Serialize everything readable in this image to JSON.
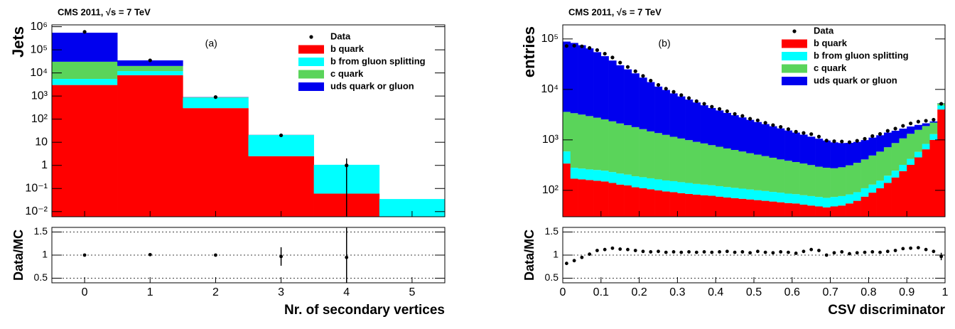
{
  "chart_data": [
    {
      "type": "stacked_histogram",
      "title": "CMS 2011, √s = 7 TeV",
      "annotation": "(a)",
      "y_label": "Jets",
      "log_y": true,
      "bins": [
        -0.5,
        0.5,
        1.5,
        2.5,
        3.5,
        4.5,
        5.5
      ],
      "xlim": [
        -0.5,
        5.5
      ],
      "ylim": [
        0.006,
        1200000
      ],
      "yticks": [
        {
          "value": 0.01,
          "label": "10⁻²"
        },
        {
          "value": 0.1,
          "label": "10⁻¹"
        },
        1,
        10,
        {
          "value": 100,
          "label": "10²"
        },
        {
          "value": 1000,
          "label": "10³"
        },
        {
          "value": 10000,
          "label": "10⁴"
        },
        {
          "value": 100000,
          "label": "10⁵"
        },
        {
          "value": 1000000,
          "label": "10⁶"
        }
      ],
      "legend": "top-right",
      "data": {
        "name": "Data",
        "values": [
          600000,
          35000,
          900,
          20,
          1,
          null
        ],
        "errors": [
          null,
          null,
          null,
          null,
          1,
          null
        ]
      },
      "series": [
        {
          "name": "b quark",
          "color": "#ff0000",
          "values": [
            3000,
            8000,
            300,
            2.5,
            0.06,
            0
          ]
        },
        {
          "name": "b from gluon splitting",
          "color": "#00ffff",
          "values": [
            2500,
            4000,
            550,
            18,
            1.0,
            0.035
          ]
        },
        {
          "name": "c quark",
          "color": "#5ad45a",
          "values": [
            25000,
            8000,
            30,
            0.3,
            0,
            0
          ]
        },
        {
          "name": "uds quark or gluon",
          "color": "#0000ee",
          "values": [
            520000,
            15000,
            20,
            0.2,
            0,
            0
          ]
        }
      ]
    },
    {
      "type": "ratio",
      "y_label": "Data/MC",
      "x_label": "Nr. of secondary vertices",
      "x": [
        0,
        1,
        2,
        3,
        4
      ],
      "values": [
        1.0,
        1.01,
        1.0,
        0.97,
        0.95
      ],
      "errors": [
        0.01,
        0.01,
        0.02,
        0.2,
        1.0
      ],
      "xlim": [
        -0.5,
        5.5
      ],
      "xticks": [
        0,
        1,
        2,
        3,
        4,
        5
      ],
      "ylim": [
        0.4,
        1.6
      ],
      "yticks": [
        0.5,
        1,
        1.5
      ],
      "grid": true
    },
    {
      "type": "stacked_histogram",
      "title": "CMS 2011, √s = 7 TeV",
      "annotation": "(b)",
      "y_label": "entries",
      "log_y": true,
      "bins": [
        0,
        0.02,
        0.04,
        0.06,
        0.08,
        0.1,
        0.12,
        0.14,
        0.16,
        0.18,
        0.2,
        0.22,
        0.24,
        0.26,
        0.28,
        0.3,
        0.32,
        0.34,
        0.36,
        0.38,
        0.4,
        0.42,
        0.44,
        0.46,
        0.48,
        0.5,
        0.52,
        0.54,
        0.56,
        0.58,
        0.6,
        0.62,
        0.64,
        0.66,
        0.68,
        0.7,
        0.72,
        0.74,
        0.76,
        0.78,
        0.8,
        0.82,
        0.84,
        0.86,
        0.88,
        0.9,
        0.92,
        0.94,
        0.96,
        0.98,
        1.0
      ],
      "xlim": [
        0,
        1
      ],
      "ylim": [
        30,
        190000
      ],
      "yticks": [
        {
          "value": 100,
          "label": "10²"
        },
        {
          "value": 1000,
          "label": "10³"
        },
        {
          "value": 10000,
          "label": "10⁴"
        },
        {
          "value": 100000,
          "label": "10⁵"
        }
      ],
      "legend": "top-right",
      "data": {
        "name": "Data",
        "values": [
          72600,
          73400,
          71400,
          66300,
          60200,
          51000,
          42900,
          34000,
          27900,
          22900,
          18500,
          14950,
          12270,
          10340,
          8940,
          7700,
          6730,
          5840,
          5190,
          4540,
          4100,
          3700,
          3270,
          2980,
          2620,
          2440,
          2180,
          1960,
          1810,
          1630,
          1450,
          1370,
          1300,
          1160,
          970,
          940,
          930,
          900,
          960,
          1050,
          1190,
          1310,
          1510,
          1670,
          1900,
          2120,
          2300,
          2390,
          2510,
          5190
        ]
      },
      "series": [
        {
          "name": "b quark",
          "color": "#ff0000",
          "values": [
            340,
            170,
            165,
            160,
            155,
            150,
            140,
            130,
            125,
            115,
            110,
            105,
            100,
            95,
            92,
            88,
            85,
            82,
            80,
            78,
            75,
            72,
            70,
            68,
            66,
            64,
            62,
            60,
            58,
            56,
            55,
            52,
            50,
            48,
            46,
            48,
            50,
            55,
            62,
            75,
            90,
            110,
            140,
            180,
            240,
            320,
            450,
            650,
            1000,
            4000
          ]
        },
        {
          "name": "b from gluon splitting",
          "color": "#00ffff",
          "values": [
            250,
            110,
            105,
            100,
            98,
            95,
            90,
            85,
            80,
            75,
            72,
            68,
            65,
            62,
            60,
            57,
            55,
            52,
            50,
            48,
            46,
            44,
            42,
            40,
            38,
            36,
            35,
            33,
            32,
            30,
            29,
            28,
            27,
            26,
            25,
            26,
            27,
            28,
            30,
            35,
            40,
            45,
            55,
            65,
            80,
            100,
            130,
            180,
            300,
            800
          ]
        },
        {
          "name": "c quark",
          "color": "#5ad45a",
          "values": [
            3000,
            3100,
            2900,
            2700,
            2500,
            2300,
            2100,
            1900,
            1750,
            1600,
            1450,
            1300,
            1200,
            1100,
            1000,
            920,
            850,
            780,
            720,
            660,
            610,
            560,
            520,
            480,
            440,
            410,
            380,
            350,
            320,
            300,
            280,
            260,
            240,
            220,
            210,
            200,
            210,
            230,
            260,
            300,
            360,
            430,
            520,
            620,
            750,
            900,
            1000,
            1050,
            900,
            500
          ]
        },
        {
          "name": "uds quark or gluon",
          "color": "#0000ee",
          "values": [
            85000,
            80000,
            72000,
            62000,
            52000,
            43000,
            35000,
            28000,
            23000,
            19000,
            15500,
            12500,
            10000,
            8500,
            7200,
            6200,
            5300,
            4600,
            4000,
            3500,
            3100,
            2750,
            2450,
            2200,
            1950,
            1750,
            1580,
            1420,
            1280,
            1150,
            1030,
            930,
            840,
            760,
            690,
            620,
            580,
            560,
            560,
            580,
            620,
            650,
            680,
            650,
            600,
            520,
            400,
            250,
            120,
            50
          ]
        }
      ]
    },
    {
      "type": "ratio",
      "y_label": "Data/MC",
      "x_label": "CSV discriminator",
      "x": [
        0.01,
        0.03,
        0.05,
        0.07,
        0.09,
        0.11,
        0.13,
        0.15,
        0.17,
        0.19,
        0.21,
        0.23,
        0.25,
        0.27,
        0.29,
        0.31,
        0.33,
        0.35,
        0.37,
        0.39,
        0.41,
        0.43,
        0.45,
        0.47,
        0.49,
        0.51,
        0.53,
        0.55,
        0.57,
        0.59,
        0.61,
        0.63,
        0.65,
        0.67,
        0.69,
        0.71,
        0.73,
        0.75,
        0.77,
        0.79,
        0.81,
        0.83,
        0.85,
        0.87,
        0.89,
        0.91,
        0.93,
        0.95,
        0.97,
        0.99
      ],
      "values": [
        0.82,
        0.88,
        0.95,
        1.02,
        1.1,
        1.12,
        1.15,
        1.13,
        1.12,
        1.1,
        1.08,
        1.07,
        1.08,
        1.06,
        1.07,
        1.06,
        1.07,
        1.06,
        1.07,
        1.06,
        1.07,
        1.08,
        1.06,
        1.07,
        1.05,
        1.08,
        1.06,
        1.05,
        1.07,
        1.06,
        1.04,
        1.08,
        1.12,
        1.1,
        1.0,
        1.05,
        1.07,
        1.03,
        1.05,
        1.06,
        1.07,
        1.06,
        1.08,
        1.1,
        1.14,
        1.15,
        1.16,
        1.12,
        1.08,
        0.97
      ],
      "errors": [
        0.02,
        0.02,
        0.02,
        0.02,
        0.02,
        0.02,
        0.02,
        0.02,
        0.02,
        0.02,
        0.02,
        0.02,
        0.02,
        0.02,
        0.02,
        0.02,
        0.02,
        0.02,
        0.02,
        0.02,
        0.02,
        0.02,
        0.02,
        0.02,
        0.02,
        0.02,
        0.02,
        0.02,
        0.02,
        0.02,
        0.02,
        0.02,
        0.02,
        0.02,
        0.02,
        0.02,
        0.02,
        0.02,
        0.02,
        0.02,
        0.02,
        0.02,
        0.02,
        0.02,
        0.02,
        0.02,
        0.02,
        0.02,
        0.02,
        0.08
      ],
      "xlim": [
        0,
        1
      ],
      "xticks": [
        0,
        0.1,
        0.2,
        0.3,
        0.4,
        0.5,
        0.6,
        0.7,
        0.8,
        0.9,
        1
      ],
      "ylim": [
        0.4,
        1.6
      ],
      "yticks": [
        0.5,
        1,
        1.5
      ],
      "grid": true
    }
  ]
}
